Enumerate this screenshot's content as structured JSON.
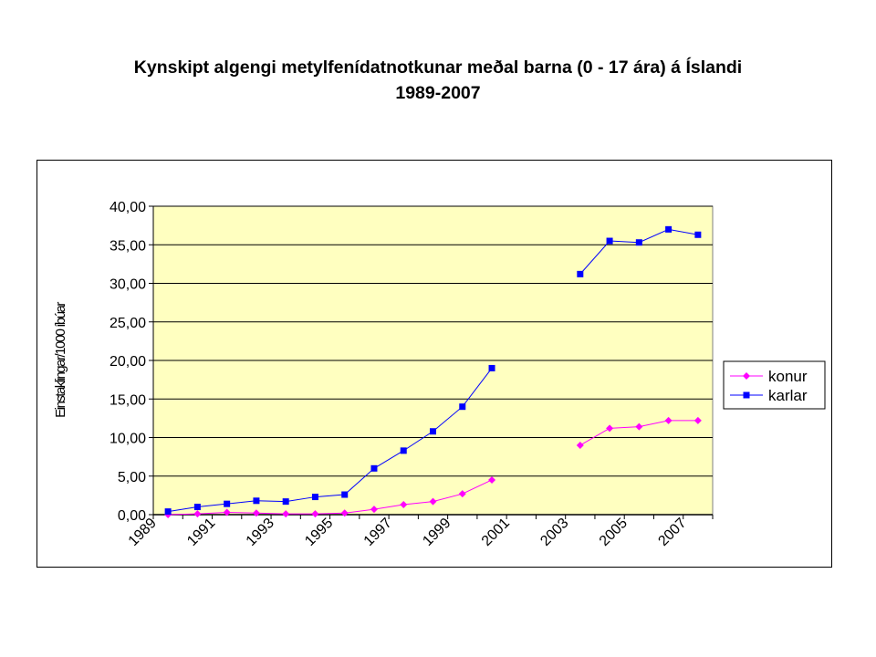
{
  "title_lines": [
    "Kynskipt algengi metylfenídatnotkunar meðal barna (0 - 17 ára) á Íslandi",
    "1989-2007"
  ],
  "chart_data": {
    "type": "line",
    "title": "Kynskipt algengi metylfenídatnotkunar meðal barna (0 - 17 ára) á Íslandi 1989-2007",
    "xlabel": "",
    "ylabel": "Einstaklingar/1000 íbúar",
    "ylim": [
      0,
      40
    ],
    "y_ticks": [
      "0,00",
      "5,00",
      "10,00",
      "15,00",
      "20,00",
      "25,00",
      "30,00",
      "35,00",
      "40,00"
    ],
    "x_ticks": [
      "1989",
      "1991",
      "1993",
      "1995",
      "1997",
      "1999",
      "2001",
      "2003",
      "2005",
      "2007"
    ],
    "x": [
      1989.5,
      1990.5,
      1991.5,
      1992.5,
      1993.5,
      1994.5,
      1995.5,
      1996.5,
      1997.5,
      1998.5,
      1999.5,
      2000.5,
      2001.5,
      2002.5,
      2003.5,
      2004.5,
      2005.5,
      2006.5,
      2007.5
    ],
    "grid": true,
    "legend_position": "right",
    "plot_background": "#ffffc0",
    "series": [
      {
        "name": "konur",
        "color": "#ff00ff",
        "marker": "diamond",
        "values": [
          0.0,
          0.1,
          0.3,
          0.2,
          0.1,
          0.1,
          0.2,
          0.7,
          1.3,
          1.7,
          2.7,
          4.5,
          null,
          null,
          9.0,
          11.2,
          11.4,
          12.2,
          12.2
        ]
      },
      {
        "name": "karlar",
        "color": "#0000ff",
        "marker": "square",
        "values": [
          0.4,
          1.0,
          1.4,
          1.8,
          1.7,
          2.3,
          2.6,
          6.0,
          8.3,
          10.8,
          14.0,
          19.0,
          null,
          null,
          31.2,
          35.5,
          35.3,
          37.0,
          36.3
        ]
      }
    ]
  }
}
